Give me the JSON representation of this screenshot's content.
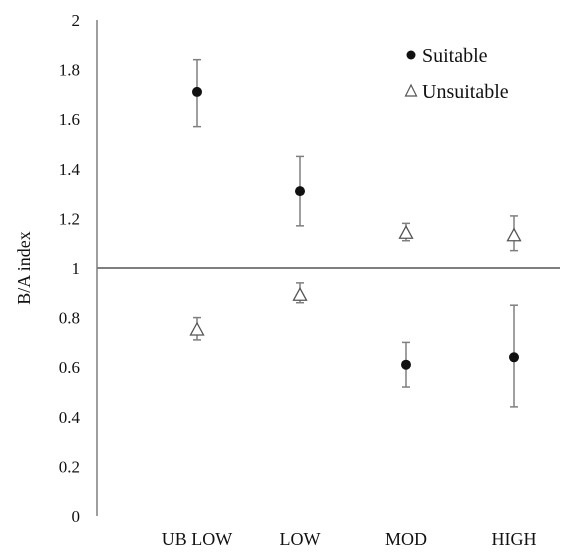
{
  "chart_data": {
    "type": "scatter",
    "title": "",
    "xlabel": "",
    "ylabel": "B/A index",
    "ylim": [
      0,
      2
    ],
    "yticks": [
      0,
      0.2,
      0.4,
      0.6,
      0.8,
      1,
      1.2,
      1.4,
      1.6,
      1.8,
      2
    ],
    "ytick_labels": [
      "0",
      "0.2",
      "0.4",
      "0.6",
      "0.8",
      "1",
      "1.2",
      "1.4",
      "1.6",
      "1.8",
      "2"
    ],
    "categories": [
      "UB LOW",
      "LOW",
      "MOD",
      "HIGH"
    ],
    "reference_line": 1,
    "grid": false,
    "legend_position": "top-right",
    "series": [
      {
        "name": "Suitable",
        "marker": "filled-circle",
        "color": "#111111",
        "values": [
          1.71,
          1.31,
          0.61,
          0.64
        ],
        "error_low": [
          1.57,
          1.17,
          0.52,
          0.44
        ],
        "error_high": [
          1.84,
          1.45,
          0.7,
          0.85
        ]
      },
      {
        "name": "Unsuitable",
        "marker": "open-triangle",
        "color": "#555555",
        "values": [
          0.75,
          0.89,
          1.14,
          1.13
        ],
        "error_low": [
          0.71,
          0.86,
          1.11,
          1.07
        ],
        "error_high": [
          0.8,
          0.94,
          1.18,
          1.21
        ]
      }
    ]
  }
}
